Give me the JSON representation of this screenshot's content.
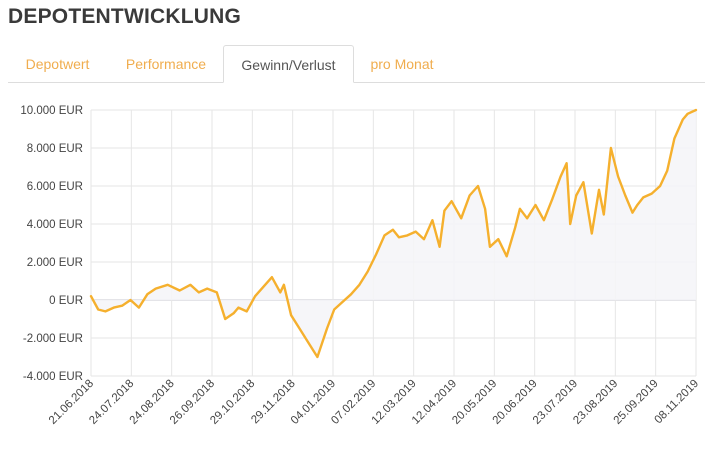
{
  "page": {
    "title": "DEPOTENTWICKLUNG"
  },
  "tabs": [
    {
      "label": "Depotwert",
      "active": false
    },
    {
      "label": "Performance",
      "active": false
    },
    {
      "label": "Gewinn/Verlust",
      "active": true
    },
    {
      "label": "pro Monat",
      "active": false
    }
  ],
  "colors": {
    "accent": "#f0ad4e",
    "line": "#f5b02e",
    "area": "#f4f4f8",
    "grid": "#e6e6e6"
  },
  "chart_data": {
    "type": "area",
    "xlabel": "",
    "ylabel": "",
    "ylim": [
      -4000,
      10000
    ],
    "yticks": [
      -4000,
      -2000,
      0,
      2000,
      4000,
      6000,
      8000,
      10000
    ],
    "ytick_labels": [
      "-4.000 EUR",
      "-2.000 EUR",
      "0 EUR",
      "2.000 EUR",
      "4.000 EUR",
      "6.000 EUR",
      "8.000 EUR",
      "10.000 EUR"
    ],
    "xticks": [
      "21.06.2018",
      "24.07.2018",
      "24.08.2018",
      "26.09.2018",
      "29.10.2018",
      "29.11.2018",
      "04.01.2019",
      "07.02.2019",
      "12.03.2019",
      "12.04.2019",
      "20.05.2019",
      "20.06.2019",
      "23.07.2019",
      "23.08.2019",
      "25.09.2019",
      "08.11.2019"
    ],
    "grid": true,
    "legend": "none",
    "x": [
      "2018-06-21",
      "2018-06-27",
      "2018-07-03",
      "2018-07-10",
      "2018-07-17",
      "2018-07-24",
      "2018-07-31",
      "2018-08-07",
      "2018-08-14",
      "2018-08-24",
      "2018-09-03",
      "2018-09-12",
      "2018-09-19",
      "2018-09-26",
      "2018-10-04",
      "2018-10-11",
      "2018-10-18",
      "2018-10-22",
      "2018-10-29",
      "2018-11-05",
      "2018-11-12",
      "2018-11-19",
      "2018-11-26",
      "2018-11-29",
      "2018-12-05",
      "2018-12-12",
      "2018-12-19",
      "2018-12-27",
      "2019-01-04",
      "2019-01-10",
      "2019-01-17",
      "2019-01-24",
      "2019-01-31",
      "2019-02-07",
      "2019-02-14",
      "2019-02-21",
      "2019-02-28",
      "2019-03-05",
      "2019-03-12",
      "2019-03-19",
      "2019-03-26",
      "2019-04-02",
      "2019-04-08",
      "2019-04-12",
      "2019-04-18",
      "2019-04-26",
      "2019-05-03",
      "2019-05-10",
      "2019-05-16",
      "2019-05-20",
      "2019-05-27",
      "2019-06-03",
      "2019-06-10",
      "2019-06-14",
      "2019-06-20",
      "2019-06-27",
      "2019-07-04",
      "2019-07-11",
      "2019-07-18",
      "2019-07-23",
      "2019-07-26",
      "2019-07-31",
      "2019-08-06",
      "2019-08-13",
      "2019-08-19",
      "2019-08-23",
      "2019-08-29",
      "2019-09-04",
      "2019-09-10",
      "2019-09-16",
      "2019-09-20",
      "2019-09-25",
      "2019-10-02",
      "2019-10-09",
      "2019-10-15",
      "2019-10-21",
      "2019-10-28",
      "2019-11-01",
      "2019-11-08"
    ],
    "series": [
      {
        "values": [
          200,
          -500,
          -600,
          -400,
          -300,
          0,
          -400,
          300,
          600,
          800,
          500,
          800,
          400,
          600,
          400,
          -1000,
          -700,
          -400,
          -600,
          200,
          700,
          1200,
          400,
          800,
          -800,
          -1500,
          -2200,
          -3000,
          -1500,
          -500,
          -100,
          300,
          800,
          1500,
          2400,
          3400,
          3700,
          3300,
          3400,
          3600,
          3200,
          4200,
          2800,
          4700,
          5200,
          4300,
          5500,
          6000,
          4800,
          2800,
          3200,
          2300,
          3800,
          4800,
          4300,
          5000,
          4200,
          5300,
          6500,
          7200,
          4000,
          5500,
          6200,
          3500,
          5800,
          4500,
          8000,
          6500,
          5500,
          4600,
          5000,
          5400,
          5600,
          6000,
          6800,
          8500,
          9500,
          9800,
          10000
        ]
      }
    ]
  }
}
